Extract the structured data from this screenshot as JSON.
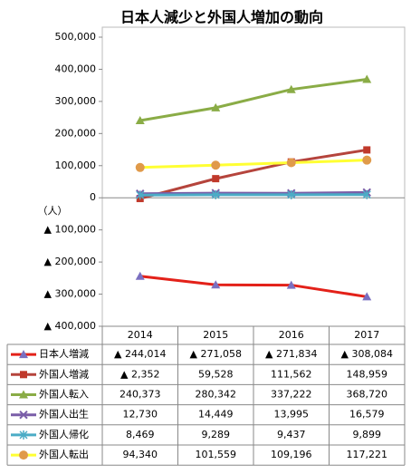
{
  "chart_data": {
    "type": "line",
    "title": "日本人減少と外国人増加の動向",
    "y_label": "（人）",
    "categories": [
      "2014",
      "2015",
      "2016",
      "2017"
    ],
    "ylim": [
      -400000,
      500000
    ],
    "yticks": [
      {
        "value": 500000,
        "label": "500,000"
      },
      {
        "value": 400000,
        "label": "400,000"
      },
      {
        "value": 300000,
        "label": "300,000"
      },
      {
        "value": 200000,
        "label": "200,000"
      },
      {
        "value": 100000,
        "label": "100,000"
      },
      0,
      {
        "value": -100000,
        "label": "▲ 100,000"
      },
      {
        "value": -200000,
        "label": "▲ 200,000"
      },
      {
        "value": -300000,
        "label": "▲ 300,000"
      },
      {
        "value": -400000,
        "label": "▲ 400,000"
      }
    ],
    "grid": false,
    "series": [
      {
        "name": "日本人増減",
        "color": "#e32119",
        "marker": "triangle",
        "marker_color": "#7a6fc0",
        "values": [
          -244014,
          -271058,
          -271834,
          -308084
        ],
        "value_labels": [
          "▲ 244,014",
          "▲ 271,058",
          "▲ 271,834",
          "▲ 308,084"
        ]
      },
      {
        "name": "外国人増減",
        "color": "#b5443c",
        "marker": "square",
        "marker_color": "#c0392b",
        "values": [
          -2352,
          59528,
          111562,
          148959
        ],
        "value_labels": [
          "▲ 2,352",
          "59,528",
          "111,562",
          "148,959"
        ]
      },
      {
        "name": "外国人転入",
        "color": "#8aac46",
        "marker": "triangle",
        "marker_color": "#8aac46",
        "values": [
          240373,
          280342,
          337222,
          368720
        ],
        "value_labels": [
          "240,373",
          "280,342",
          "337,222",
          "368,720"
        ]
      },
      {
        "name": "外国人出生",
        "color": "#7a5ea8",
        "marker": "x",
        "marker_color": "#7a5ea8",
        "values": [
          12730,
          14449,
          13995,
          16579
        ],
        "value_labels": [
          "12,730",
          "14,449",
          "13,995",
          "16,579"
        ]
      },
      {
        "name": "外国人帰化",
        "color": "#4bacc6",
        "marker": "asterisk",
        "marker_color": "#4bacc6",
        "values": [
          8469,
          9289,
          9437,
          9899
        ],
        "value_labels": [
          "8,469",
          "9,289",
          "9,437",
          "9,899"
        ]
      },
      {
        "name": "外国人転出",
        "color": "#ffff33",
        "marker": "circle",
        "marker_color": "#e09a4a",
        "values": [
          94340,
          101559,
          109196,
          117221
        ],
        "value_labels": [
          "94,340",
          "101,559",
          "109,196",
          "117,221"
        ]
      }
    ]
  }
}
